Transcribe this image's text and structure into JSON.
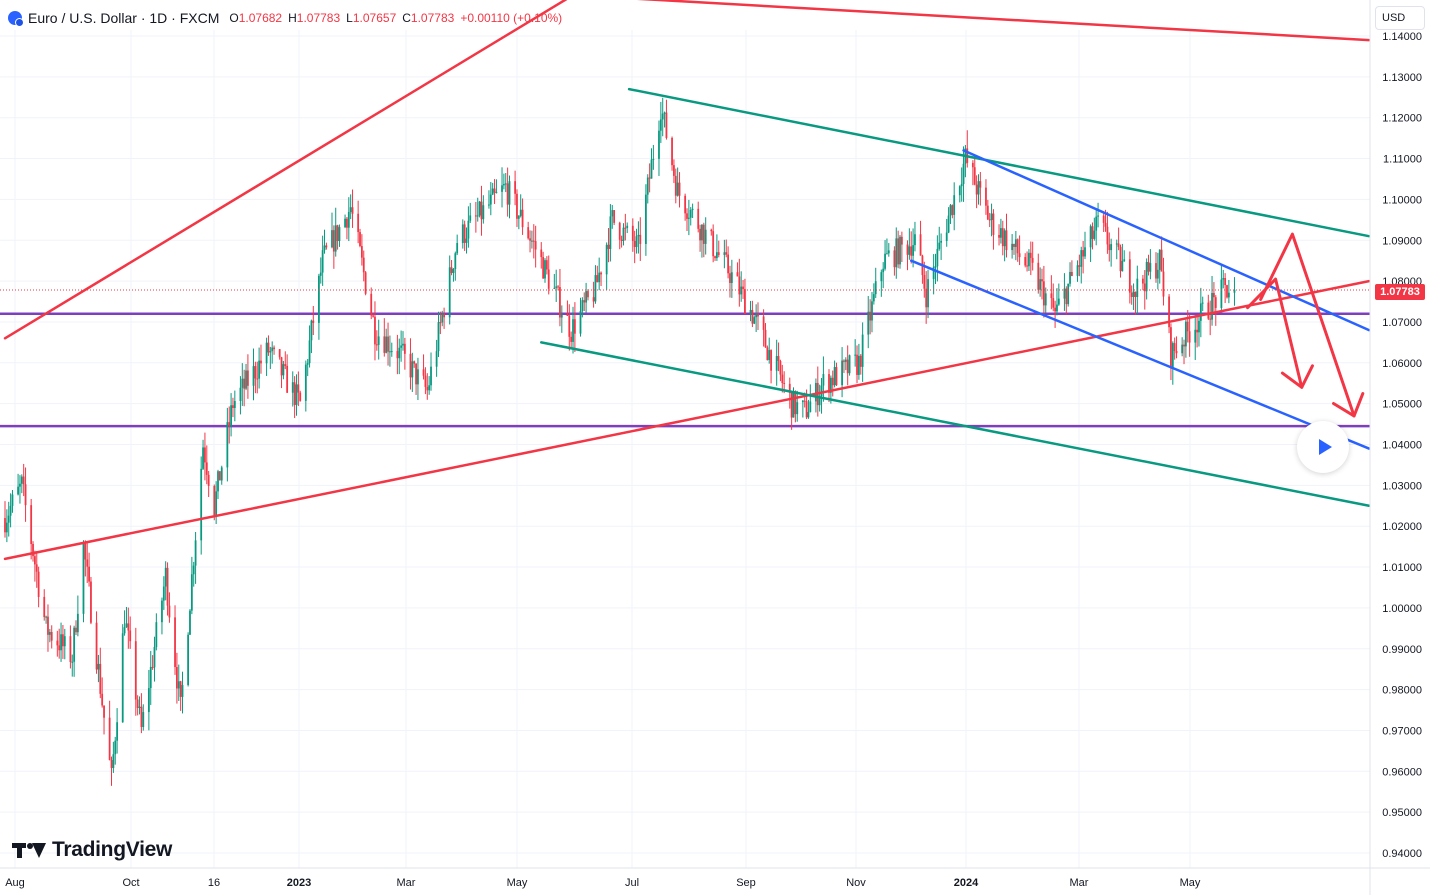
{
  "header": {
    "title": "Euro / U.S. Dollar · 1D · FXCM",
    "open_label": "O",
    "open": "1.07682",
    "high_label": "H",
    "high": "1.07783",
    "low_label": "L",
    "low": "1.07657",
    "close_label": "C",
    "close": "1.07783",
    "change": "+0.00110 (+0.10%)"
  },
  "currency_button": "USD",
  "last_price": "1.07783",
  "logo_text": "TradingView",
  "colors": {
    "up": "#089981",
    "down": "#f23645",
    "red_line": "#f23645",
    "green_line": "#089981",
    "blue_line": "#2962ff",
    "purple_line": "#7e3fbf"
  },
  "chart_data": {
    "type": "candlestick",
    "title": "Euro / U.S. Dollar · 1D · FXCM",
    "ylim": [
      0.938,
      1.143
    ],
    "y_ticks": [
      "1.14000",
      "1.13000",
      "1.12000",
      "1.11000",
      "1.10000",
      "1.09000",
      "1.08000",
      "1.07000",
      "1.06000",
      "1.05000",
      "1.04000",
      "1.03000",
      "1.02000",
      "1.01000",
      "1.00000",
      "0.99000",
      "0.98000",
      "0.97000",
      "0.96000",
      "0.95000",
      "0.94000"
    ],
    "x_ticks": [
      "Aug",
      "Oct",
      "16",
      "2023",
      "Mar",
      "May",
      "Jul",
      "Sep",
      "Nov",
      "2024",
      "Mar",
      "May"
    ],
    "x_range": [
      "2022-08-01",
      "2024-07-31"
    ],
    "price_path": [
      [
        "2022-08-01",
        1.022
      ],
      [
        "2022-08-10",
        1.03
      ],
      [
        "2022-08-23",
        0.995
      ],
      [
        "2022-09-06",
        0.988
      ],
      [
        "2022-09-12",
        1.015
      ],
      [
        "2022-09-27",
        0.958
      ],
      [
        "2022-10-04",
        0.998
      ],
      [
        "2022-10-13",
        0.97
      ],
      [
        "2022-10-26",
        1.008
      ],
      [
        "2022-11-03",
        0.975
      ],
      [
        "2022-11-15",
        1.04
      ],
      [
        "2022-11-21",
        1.025
      ],
      [
        "2022-12-01",
        1.05
      ],
      [
        "2022-12-20",
        1.063
      ],
      [
        "2023-01-06",
        1.05
      ],
      [
        "2023-01-18",
        1.085
      ],
      [
        "2023-02-02",
        1.098
      ],
      [
        "2023-02-15",
        1.068
      ],
      [
        "2023-03-01",
        1.062
      ],
      [
        "2023-03-15",
        1.053
      ],
      [
        "2023-03-31",
        1.09
      ],
      [
        "2023-04-26",
        1.103
      ],
      [
        "2023-05-12",
        1.088
      ],
      [
        "2023-05-31",
        1.068
      ],
      [
        "2023-06-13",
        1.078
      ],
      [
        "2023-06-22",
        1.095
      ],
      [
        "2023-07-06",
        1.088
      ],
      [
        "2023-07-18",
        1.123
      ],
      [
        "2023-07-27",
        1.102
      ],
      [
        "2023-08-24",
        1.082
      ],
      [
        "2023-09-05",
        1.072
      ],
      [
        "2023-09-26",
        1.05
      ],
      [
        "2023-10-03",
        1.048
      ],
      [
        "2023-10-13",
        1.055
      ],
      [
        "2023-11-01",
        1.06
      ],
      [
        "2023-11-14",
        1.085
      ],
      [
        "2023-12-01",
        1.09
      ],
      [
        "2023-12-07",
        1.077
      ],
      [
        "2023-12-28",
        1.11
      ],
      [
        "2024-01-10",
        1.095
      ],
      [
        "2024-02-01",
        1.083
      ],
      [
        "2024-02-14",
        1.072
      ],
      [
        "2024-03-08",
        1.094
      ],
      [
        "2024-03-28",
        1.078
      ],
      [
        "2024-04-10",
        1.085
      ],
      [
        "2024-04-16",
        1.062
      ],
      [
        "2024-05-03",
        1.072
      ],
      [
        "2024-05-15",
        1.078
      ],
      [
        "2024-05-20",
        1.0778
      ]
    ],
    "last_price": 1.07783,
    "trend_lines": [
      {
        "color": "red",
        "from": [
          "2022-08-01",
          1.012
        ],
        "to": [
          "2024-07-31",
          1.08
        ]
      },
      {
        "color": "red",
        "from": [
          "2022-08-01",
          1.066
        ],
        "to": [
          "2023-06-01",
          1.15
        ]
      },
      {
        "color": "red",
        "from": [
          "2023-06-01",
          1.15
        ],
        "to": [
          "2024-07-31",
          1.139
        ]
      },
      {
        "color": "green",
        "from": [
          "2023-07-01",
          1.127
        ],
        "to": [
          "2024-07-31",
          1.091
        ]
      },
      {
        "color": "green",
        "from": [
          "2023-05-15",
          1.065
        ],
        "to": [
          "2024-07-31",
          1.025
        ]
      },
      {
        "color": "blue",
        "from": [
          "2023-12-27",
          1.112
        ],
        "to": [
          "2024-07-31",
          1.068
        ]
      },
      {
        "color": "blue",
        "from": [
          "2023-11-29",
          1.085
        ],
        "to": [
          "2024-07-31",
          1.039
        ]
      }
    ],
    "horizontal_lines": [
      {
        "color": "purple",
        "y": 1.072
      },
      {
        "color": "purple",
        "y": 1.0445
      }
    ],
    "arrows": [
      {
        "color": "red",
        "points": [
          [
            "2024-05-27",
            1.0735
          ],
          [
            "2024-06-11",
            1.0805
          ],
          [
            "2024-06-25",
            1.054
          ]
        ]
      },
      {
        "color": "red",
        "points": [
          [
            "2024-06-03",
            1.0755
          ],
          [
            "2024-06-20",
            1.0915
          ],
          [
            "2024-07-23",
            1.047
          ]
        ]
      }
    ]
  }
}
